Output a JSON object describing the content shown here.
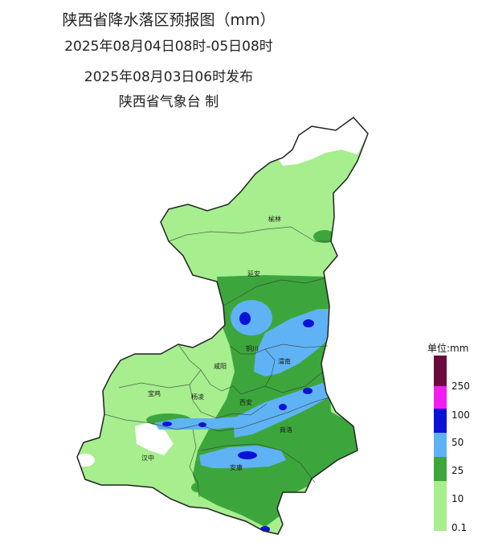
{
  "title": {
    "line1": "陕西省降水落区预报图（mm）",
    "line2": "2025年08月04日08时-05日08时",
    "line3": "2025年08月03日06时发布",
    "line4": "陕西省气象台 制"
  },
  "cities": {
    "yulin": "榆林",
    "yanan": "延安",
    "tongchuan": "铜川",
    "weinan": "渭南",
    "xianyang": "咸阳",
    "baoji": "宝鸡",
    "yangling": "杨凌",
    "xian": "西安",
    "shangluo": "商洛",
    "hanzhong": "汉中",
    "ankang": "安康"
  },
  "legend": {
    "title": "单位:mm",
    "ticks": [
      "250",
      "100",
      "50",
      "25",
      "10",
      "0.1"
    ],
    "colors": {
      "c250": "#6b0a3c",
      "c100": "#f01ef0",
      "c50": "#0a12d8",
      "c25": "#5fb3f5",
      "c10": "#3ca63c",
      "c01": "#a6ee8e"
    }
  }
}
